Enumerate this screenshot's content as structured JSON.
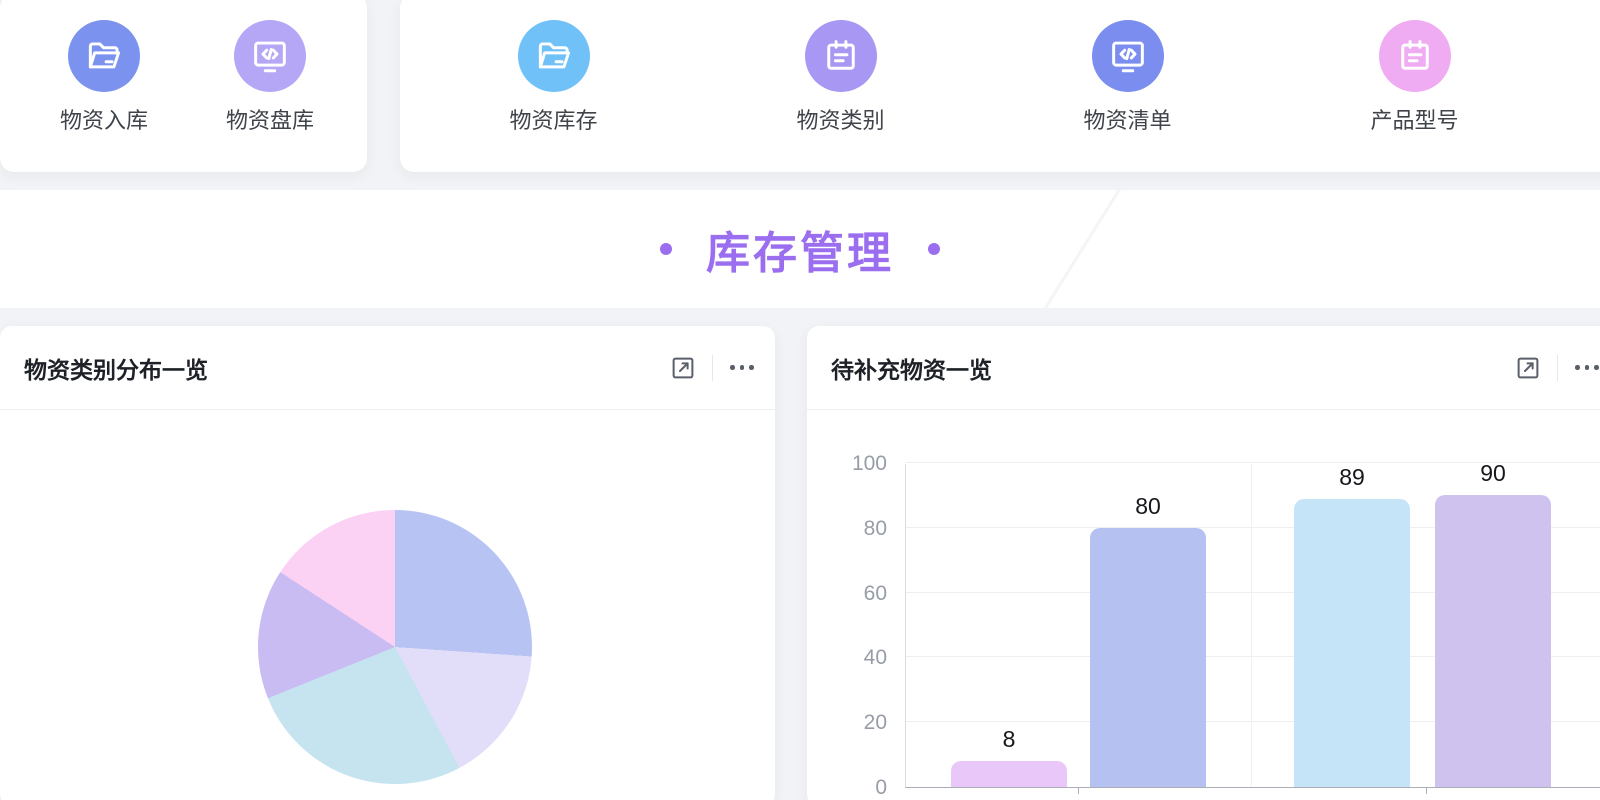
{
  "quick_nav": {
    "group1": [
      {
        "label": "物资入库",
        "icon": "folder-open-icon",
        "circle_color": "#7b93ef"
      },
      {
        "label": "物资盘库",
        "icon": "monitor-code-icon",
        "circle_color": "#b5a7f5"
      }
    ],
    "group2": [
      {
        "label": "物资库存",
        "icon": "folder-open-icon",
        "circle_color": "#6fc1f7"
      },
      {
        "label": "物资类别",
        "icon": "notepad-icon",
        "circle_color": "#a897f3"
      },
      {
        "label": "物资清单",
        "icon": "monitor-code-icon",
        "circle_color": "#7b8ef0"
      },
      {
        "label": "产品型号",
        "icon": "notepad-icon",
        "circle_color": "#efacf2"
      }
    ]
  },
  "banner": {
    "title": "库存管理",
    "accent_color": "#9b6ef0"
  },
  "panels": {
    "pie": {
      "title": "物资类别分布一览"
    },
    "bar": {
      "title": "待补充物资一览"
    }
  },
  "chart_data": [
    {
      "type": "pie",
      "title": "物资类别分布一览",
      "legend": "none",
      "labels_visible": false,
      "slices": [
        {
          "percent": 26.1,
          "color": "#b7c3f3"
        },
        {
          "percent": 16.1,
          "color": "#e2def9"
        },
        {
          "percent": 26.7,
          "color": "#c5e4f0"
        },
        {
          "percent": 15.3,
          "color": "#c9bcf2"
        },
        {
          "percent": 15.8,
          "color": "#fbd1f4"
        }
      ]
    },
    {
      "type": "bar",
      "title": "待补充物资一览",
      "categories": [
        "",
        "",
        "",
        ""
      ],
      "values": [
        8,
        80,
        89,
        90
      ],
      "bar_colors": [
        "#e9c7f8",
        "#b4c1f1",
        "#c5e4f8",
        "#cfc2ef"
      ],
      "ylim": [
        0,
        100
      ],
      "yticks": [
        0,
        20,
        40,
        60,
        80,
        100
      ],
      "grid": true,
      "value_labels": [
        "8",
        "80",
        "89",
        "90"
      ]
    }
  ]
}
